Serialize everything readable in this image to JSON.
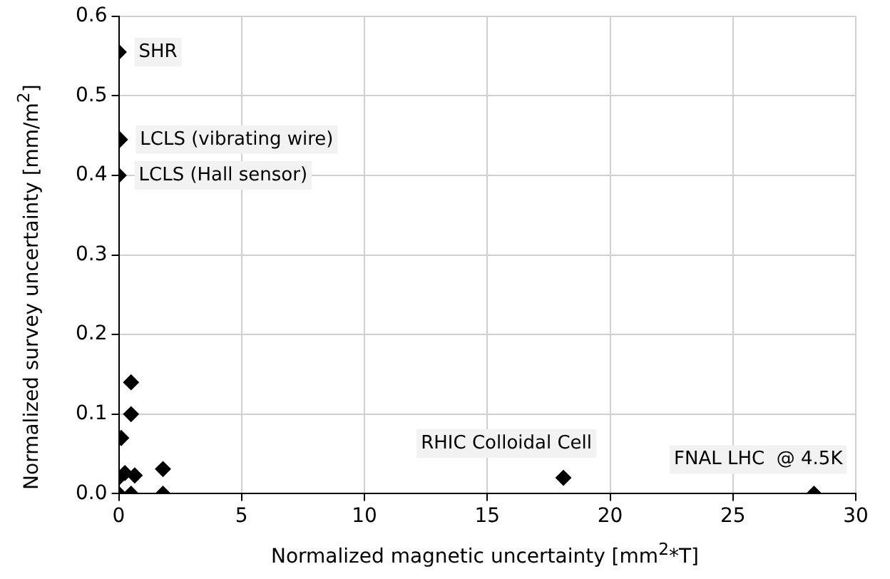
{
  "chart_data": {
    "type": "scatter",
    "xlabel": "Normalized magnetic uncertainty [mm$^{2}$*T]",
    "ylabel": "Normalized survey uncertainty [mm/m$^{2}$]",
    "series": [
      {
        "color": "#000000",
        "x": [
          0,
          0.05,
          0,
          0.5,
          0.5,
          0.1,
          0,
          0.25,
          0.65,
          1.8,
          0,
          0.5,
          1.8,
          18.1,
          28.3
        ],
        "values": [
          0.555,
          0.445,
          0.4,
          0.14,
          0.1,
          0.07,
          0.02,
          0.026,
          0.023,
          0.031,
          0,
          0,
          0,
          0.02,
          0
        ]
      }
    ],
    "xlim": [
      0,
      30
    ],
    "xticks": [
      0,
      5,
      10,
      15,
      20,
      25,
      30
    ],
    "ylim": [
      0,
      0.6
    ],
    "yticks": [
      {
        "value": 0,
        "label": "0.0"
      },
      {
        "value": 0.1,
        "label": "0.1"
      },
      {
        "value": 0.2,
        "label": "0.2"
      },
      {
        "value": 0.3,
        "label": "0.3"
      },
      {
        "value": 0.4,
        "label": "0.4"
      },
      {
        "value": 0.5,
        "label": "0.5"
      },
      {
        "value": 0.6,
        "label": "0.6"
      }
    ],
    "grid": true,
    "marker": "diamond",
    "annotations": [
      {
        "text": "SHR",
        "x": 0,
        "y": 0.555
      },
      {
        "text": "LCLS (vibrating wire)",
        "x": 0.05,
        "y": 0.445
      },
      {
        "text": "LCLS (Hall sensor)",
        "x": 0,
        "y": 0.4
      },
      {
        "text": "RHIC Colloidal Cell",
        "x": 18.1,
        "y": 0.02
      },
      {
        "text": "FNAL LHC  @ 4.5K",
        "x": 28.3,
        "y": 0
      }
    ]
  }
}
